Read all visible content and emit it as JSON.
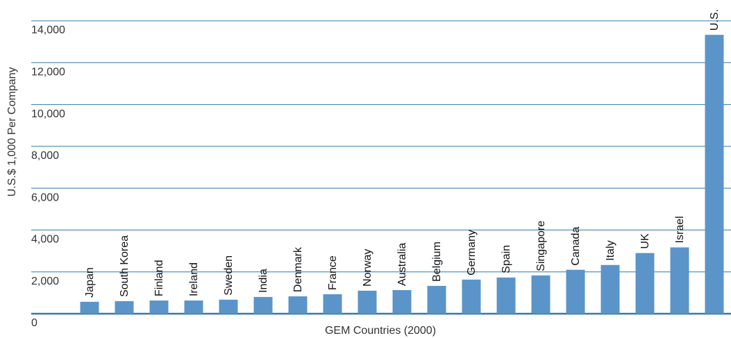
{
  "chart_data": {
    "type": "bar",
    "y_label": "U.S.$ 1,000 Per Company",
    "x_label": "GEM Countries (2000)",
    "categories": [
      "Japan",
      "South Korea",
      "Finland",
      "Ireland",
      "Sweden",
      "India",
      "Denmark",
      "France",
      "Norway",
      "Australia",
      "Belgium",
      "Germany",
      "Spain",
      "Singapore",
      "Canada",
      "Italy",
      "UK",
      "Israel",
      "U.S."
    ],
    "values": [
      570,
      600,
      630,
      630,
      670,
      800,
      830,
      930,
      1100,
      1130,
      1330,
      1630,
      1730,
      1830,
      2100,
      2330,
      2900,
      3170,
      13330
    ],
    "color": "#5b94c8",
    "ylim": [
      0,
      14000
    ],
    "yticks": [
      0,
      {
        "value": 2000,
        "label": "2,000"
      },
      {
        "value": 4000,
        "label": "4,000"
      },
      {
        "value": 6000,
        "label": "6,000"
      },
      {
        "value": 8000,
        "label": "8,000"
      },
      {
        "value": 10000,
        "label": "10,000"
      },
      {
        "value": 12000,
        "label": "12,000"
      },
      {
        "value": 14000,
        "label": "14,000"
      }
    ],
    "grid": true
  }
}
